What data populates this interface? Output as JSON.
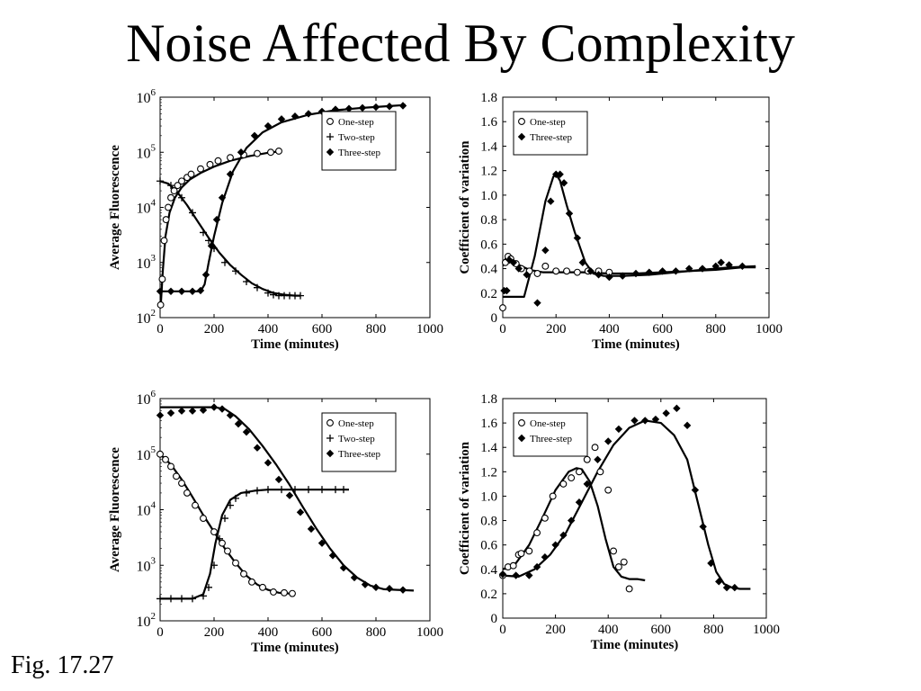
{
  "title": "Noise Affected By Complexity",
  "figure_label": "Fig. 17.27",
  "colors": {
    "ink": "#000000",
    "background": "#ffffff"
  },
  "chart_data": [
    {
      "id": "top-left",
      "type": "line",
      "yscale": "log",
      "xlabel": "Time (minutes)",
      "ylabel": "Average Fluorescence",
      "xlim": [
        0,
        1000
      ],
      "ylim": [
        100,
        1000000
      ],
      "xticks": [
        0,
        200,
        400,
        600,
        800,
        1000
      ],
      "ytick_bases": [
        "10",
        "10",
        "10",
        "10",
        "10"
      ],
      "ytick_exps": [
        "2",
        "3",
        "4",
        "5",
        "6"
      ],
      "ytick_values": [
        100,
        1000,
        10000,
        100000,
        1000000
      ],
      "legend_position": "top-right",
      "series": [
        {
          "name": "One-step",
          "marker": "circle",
          "x": [
            2,
            8,
            15,
            22,
            30,
            40,
            52,
            65,
            80,
            100,
            115,
            150,
            185,
            215,
            260,
            310,
            360,
            410,
            440
          ],
          "y": [
            170,
            500,
            2500,
            6000,
            10000,
            15000,
            20000,
            25000,
            30000,
            35000,
            40000,
            50000,
            60000,
            70000,
            80000,
            90000,
            95000,
            100000,
            105000
          ]
        },
        {
          "name": "Two-step",
          "marker": "plus",
          "x": [
            0,
            40,
            80,
            120,
            160,
            180,
            200,
            240,
            280,
            320,
            360,
            400,
            420,
            440,
            460,
            480,
            500,
            520
          ],
          "y": [
            30000,
            25000,
            15000,
            8000,
            3500,
            2500,
            1800,
            1000,
            700,
            450,
            350,
            280,
            260,
            250,
            250,
            250,
            250,
            250
          ]
        },
        {
          "name": "Three-step",
          "marker": "diamond",
          "x": [
            0,
            40,
            80,
            120,
            150,
            170,
            190,
            210,
            230,
            260,
            300,
            350,
            400,
            450,
            500,
            550,
            600,
            650,
            700,
            750,
            800,
            850,
            900
          ],
          "y": [
            300,
            300,
            300,
            300,
            310,
            600,
            2000,
            6000,
            15000,
            40000,
            100000,
            200000,
            300000,
            400000,
            450000,
            500000,
            550000,
            600000,
            620000,
            640000,
            660000,
            680000,
            700000
          ]
        }
      ],
      "fits": [
        {
          "x": [
            2,
            10,
            20,
            35,
            55,
            80,
            110,
            150,
            200,
            260,
            330,
            400,
            450
          ],
          "y": [
            150,
            700,
            3000,
            8000,
            15000,
            23000,
            32000,
            42000,
            55000,
            70000,
            85000,
            98000,
            105000
          ]
        },
        {
          "x": [
            0,
            30,
            60,
            100,
            140,
            180,
            220,
            260,
            300,
            340,
            380,
            420,
            460,
            500,
            520
          ],
          "y": [
            30000,
            27000,
            20000,
            11000,
            5500,
            2800,
            1500,
            900,
            600,
            420,
            330,
            280,
            260,
            250,
            250
          ]
        },
        {
          "x": [
            0,
            100,
            150,
            165,
            180,
            200,
            230,
            270,
            320,
            380,
            450,
            550,
            650,
            750,
            850,
            910
          ],
          "y": [
            300,
            300,
            300,
            400,
            1000,
            3000,
            12000,
            45000,
            120000,
            230000,
            350000,
            480000,
            580000,
            640000,
            690000,
            720000
          ]
        }
      ]
    },
    {
      "id": "top-right",
      "type": "line",
      "xlabel": "Time (minutes)",
      "ylabel": "Coefficient of variation",
      "xlim": [
        0,
        1000
      ],
      "ylim": [
        0,
        1.8
      ],
      "xticks": [
        0,
        200,
        400,
        600,
        800,
        1000
      ],
      "yticks": [
        "0",
        "0.2",
        "0.4",
        "0.6",
        "0.8",
        "1.0",
        "1.2",
        "1.4",
        "1.6",
        "1.8"
      ],
      "ytick_values": [
        0,
        0.2,
        0.4,
        0.6,
        0.8,
        1.0,
        1.2,
        1.4,
        1.6,
        1.8
      ],
      "legend_position": "top-left",
      "series": [
        {
          "name": "One-step",
          "marker": "circle",
          "x": [
            0,
            10,
            20,
            30,
            50,
            70,
            100,
            130,
            160,
            200,
            240,
            280,
            320,
            360,
            400
          ],
          "y": [
            0.08,
            0.45,
            0.5,
            0.48,
            0.44,
            0.4,
            0.38,
            0.36,
            0.42,
            0.38,
            0.38,
            0.37,
            0.38,
            0.38,
            0.37
          ]
        },
        {
          "name": "Three-step",
          "marker": "diamond",
          "x": [
            5,
            15,
            25,
            40,
            60,
            90,
            130,
            160,
            180,
            200,
            215,
            230,
            250,
            280,
            300,
            330,
            360,
            400,
            450,
            500,
            550,
            600,
            650,
            700,
            750,
            800,
            820,
            850,
            900
          ],
          "y": [
            0.22,
            0.22,
            0.47,
            0.45,
            0.4,
            0.35,
            0.12,
            0.55,
            0.95,
            1.17,
            1.17,
            1.1,
            0.85,
            0.65,
            0.45,
            0.38,
            0.35,
            0.33,
            0.34,
            0.36,
            0.37,
            0.38,
            0.38,
            0.4,
            0.4,
            0.42,
            0.45,
            0.43,
            0.42
          ]
        }
      ],
      "fits": [
        {
          "x": [
            0,
            10,
            30,
            60,
            100,
            150,
            200,
            300,
            400,
            500,
            600,
            700,
            800,
            900,
            950
          ],
          "y": [
            0.42,
            0.48,
            0.47,
            0.43,
            0.39,
            0.37,
            0.37,
            0.37,
            0.36,
            0.36,
            0.37,
            0.38,
            0.39,
            0.41,
            0.41
          ]
        },
        {
          "x": [
            0,
            80,
            120,
            160,
            190,
            200,
            215,
            240,
            270,
            310,
            340,
            380,
            450,
            550,
            650,
            750,
            850,
            950
          ],
          "y": [
            0.17,
            0.17,
            0.5,
            0.95,
            1.15,
            1.17,
            1.12,
            0.92,
            0.7,
            0.45,
            0.36,
            0.34,
            0.34,
            0.35,
            0.37,
            0.39,
            0.41,
            0.42
          ]
        }
      ]
    },
    {
      "id": "bottom-left",
      "type": "line",
      "yscale": "log",
      "xlabel": "Time (minutes)",
      "ylabel": "Average Fluorescence",
      "xlim": [
        0,
        1000
      ],
      "ylim": [
        100,
        1000000
      ],
      "xticks": [
        0,
        200,
        400,
        600,
        800,
        1000
      ],
      "ytick_bases": [
        "10",
        "10",
        "10",
        "10",
        "10"
      ],
      "ytick_exps": [
        "2",
        "3",
        "4",
        "5",
        "6"
      ],
      "ytick_values": [
        100,
        1000,
        10000,
        100000,
        1000000
      ],
      "legend_position": "top-right",
      "series": [
        {
          "name": "One-step",
          "marker": "circle",
          "x": [
            0,
            20,
            40,
            60,
            80,
            100,
            130,
            160,
            200,
            230,
            250,
            280,
            310,
            340,
            380,
            420,
            460,
            490
          ],
          "y": [
            100000,
            80000,
            60000,
            40000,
            30000,
            20000,
            12000,
            7000,
            4000,
            2500,
            1800,
            1100,
            700,
            500,
            400,
            330,
            320,
            310
          ]
        },
        {
          "name": "Two-step",
          "marker": "plus",
          "x": [
            0,
            40,
            80,
            120,
            160,
            180,
            200,
            220,
            240,
            260,
            280,
            320,
            360,
            400,
            450,
            500,
            550,
            600,
            650,
            680
          ],
          "y": [
            250,
            250,
            250,
            250,
            280,
            400,
            1000,
            3000,
            7000,
            12000,
            16000,
            20000,
            22000,
            23000,
            23000,
            23000,
            23000,
            23000,
            23000,
            23000
          ]
        },
        {
          "name": "Three-step",
          "marker": "diamond",
          "x": [
            0,
            40,
            80,
            120,
            160,
            200,
            230,
            260,
            290,
            320,
            360,
            400,
            440,
            480,
            520,
            560,
            600,
            640,
            680,
            720,
            760,
            800,
            850,
            900
          ],
          "y": [
            500000,
            550000,
            600000,
            600000,
            620000,
            700000,
            650000,
            500000,
            350000,
            250000,
            130000,
            70000,
            35000,
            18000,
            9000,
            4500,
            2500,
            1500,
            900,
            600,
            450,
            400,
            380,
            360
          ]
        }
      ],
      "fits": [
        {
          "x": [
            0,
            40,
            80,
            120,
            160,
            200,
            240,
            280,
            320,
            360,
            400,
            440,
            480,
            500
          ],
          "y": [
            100000,
            65000,
            35000,
            17000,
            8000,
            4000,
            2000,
            1100,
            650,
            450,
            360,
            320,
            310,
            310
          ]
        },
        {
          "x": [
            0,
            120,
            160,
            185,
            205,
            230,
            260,
            300,
            350,
            400,
            500,
            600,
            700
          ],
          "y": [
            250,
            250,
            300,
            700,
            2500,
            8000,
            15000,
            20000,
            22000,
            23000,
            23000,
            23000,
            23000
          ]
        },
        {
          "x": [
            0,
            100,
            200,
            240,
            280,
            330,
            380,
            430,
            480,
            530,
            580,
            630,
            680,
            730,
            780,
            830,
            880,
            940
          ],
          "y": [
            700000,
            700000,
            700000,
            650000,
            480000,
            280000,
            140000,
            65000,
            28000,
            11000,
            4500,
            2000,
            1000,
            600,
            430,
            370,
            360,
            350
          ]
        }
      ]
    },
    {
      "id": "bottom-right",
      "type": "line",
      "xlabel": "Time (minutes)",
      "ylabel": "Coefficient of variation",
      "xlim": [
        0,
        1000
      ],
      "ylim": [
        0,
        1.8
      ],
      "xticks": [
        0,
        200,
        400,
        600,
        800,
        1000
      ],
      "yticks": [
        "0",
        "0.2",
        "0.4",
        "0.6",
        "0.8",
        "1.0",
        "1.2",
        "1.4",
        "1.6",
        "1.8"
      ],
      "ytick_values": [
        0,
        0.2,
        0.4,
        0.6,
        0.8,
        1.0,
        1.2,
        1.4,
        1.6,
        1.8
      ],
      "legend_position": "top-left",
      "series": [
        {
          "name": "One-step",
          "marker": "circle",
          "x": [
            0,
            20,
            40,
            60,
            70,
            100,
            130,
            160,
            190,
            230,
            260,
            290,
            320,
            350,
            370,
            400,
            420,
            440,
            460,
            480
          ],
          "y": [
            0.35,
            0.42,
            0.43,
            0.52,
            0.53,
            0.55,
            0.7,
            0.82,
            1.0,
            1.1,
            1.15,
            1.2,
            1.3,
            1.4,
            1.2,
            1.05,
            0.55,
            0.42,
            0.46,
            0.24
          ]
        },
        {
          "name": "Three-step",
          "marker": "diamond",
          "x": [
            0,
            50,
            100,
            130,
            160,
            200,
            230,
            260,
            290,
            320,
            360,
            400,
            440,
            500,
            540,
            580,
            620,
            660,
            700,
            730,
            760,
            790,
            820,
            850,
            880
          ],
          "y": [
            0.36,
            0.35,
            0.35,
            0.42,
            0.5,
            0.6,
            0.68,
            0.8,
            0.95,
            1.1,
            1.3,
            1.45,
            1.55,
            1.62,
            1.62,
            1.63,
            1.68,
            1.72,
            1.58,
            1.05,
            0.75,
            0.45,
            0.3,
            0.25,
            0.25
          ]
        }
      ],
      "fits": [
        {
          "x": [
            0,
            50,
            100,
            150,
            200,
            250,
            280,
            300,
            330,
            360,
            390,
            420,
            450,
            480,
            510,
            540
          ],
          "y": [
            0.4,
            0.45,
            0.6,
            0.82,
            1.05,
            1.2,
            1.23,
            1.22,
            1.12,
            0.92,
            0.65,
            0.42,
            0.34,
            0.32,
            0.32,
            0.31
          ]
        },
        {
          "x": [
            0,
            60,
            120,
            180,
            240,
            300,
            360,
            420,
            480,
            540,
            600,
            650,
            700,
            740,
            780,
            810,
            840,
            870,
            900,
            940
          ],
          "y": [
            0.35,
            0.34,
            0.4,
            0.52,
            0.7,
            0.95,
            1.2,
            1.42,
            1.56,
            1.62,
            1.6,
            1.5,
            1.3,
            0.95,
            0.6,
            0.38,
            0.28,
            0.25,
            0.24,
            0.24
          ]
        }
      ]
    }
  ]
}
